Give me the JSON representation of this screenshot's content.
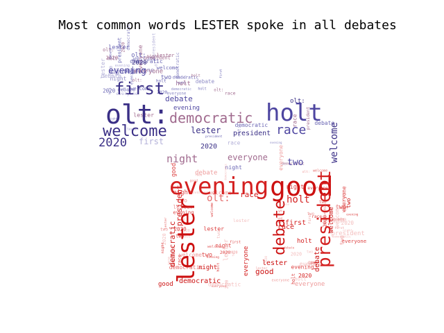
{
  "title": "Most common words LESTER spoke in all debates",
  "chart_data": {
    "type": "wordcloud",
    "title": "Most common words LESTER spoke in all debates",
    "regions": [
      {
        "shape": "elephant",
        "palette": [
          "#3a2f86",
          "#4d45a0",
          "#6a66b4",
          "#8f8cc6",
          "#b3b0d8",
          "#a06a8e"
        ],
        "words": [
          {
            "text": "olt:",
            "weight": 0.95
          },
          {
            "text": "holt",
            "weight": 0.8
          },
          {
            "text": "welcome",
            "weight": 0.65
          },
          {
            "text": "democratic",
            "weight": 0.6
          },
          {
            "text": "first",
            "weight": 0.55
          },
          {
            "text": "race",
            "weight": 0.5
          },
          {
            "text": "2020",
            "weight": 0.45
          },
          {
            "text": "evening",
            "weight": 0.4
          },
          {
            "text": "night",
            "weight": 0.38
          },
          {
            "text": "everyone",
            "weight": 0.32
          },
          {
            "text": "lester",
            "weight": 0.3
          },
          {
            "text": "two",
            "weight": 0.3
          },
          {
            "text": "president",
            "weight": 0.25
          },
          {
            "text": "debate",
            "weight": 0.22
          }
        ]
      },
      {
        "shape": "donkey",
        "palette": [
          "#cc1010",
          "#d42020",
          "#dd4444",
          "#e56a6a",
          "#ee9a9a",
          "#f4c0c0"
        ],
        "words": [
          {
            "text": "good",
            "weight": 1.0
          },
          {
            "text": "evening",
            "weight": 0.95
          },
          {
            "text": "lester",
            "weight": 0.85
          },
          {
            "text": "president",
            "weight": 0.7
          },
          {
            "text": "debate",
            "weight": 0.65
          },
          {
            "text": "holt",
            "weight": 0.5
          },
          {
            "text": "olt:",
            "weight": 0.4
          },
          {
            "text": "race",
            "weight": 0.35
          },
          {
            "text": "democratic",
            "weight": 0.3
          },
          {
            "text": "first",
            "weight": 0.3
          },
          {
            "text": "welcome",
            "weight": 0.28
          },
          {
            "text": "everyone",
            "weight": 0.25
          },
          {
            "text": "two",
            "weight": 0.22
          },
          {
            "text": "2020",
            "weight": 0.2
          },
          {
            "text": "night",
            "weight": 0.2
          }
        ]
      }
    ]
  }
}
